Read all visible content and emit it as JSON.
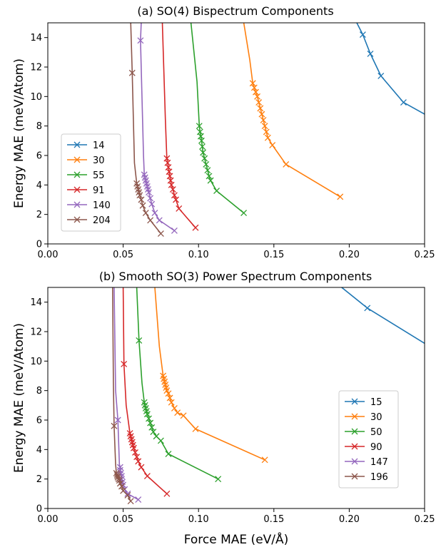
{
  "chart_data": [
    {
      "type": "line",
      "title": "(a) SO(4) Bispectrum Components",
      "xlabel": "",
      "ylabel": "Energy MAE (meV/Atom)",
      "xlim": [
        0.0,
        0.25
      ],
      "ylim": [
        0,
        15
      ],
      "xticks": [
        "0.00",
        "0.05",
        "0.10",
        "0.15",
        "0.20",
        "0.25"
      ],
      "yticks": [
        "0",
        "2",
        "4",
        "6",
        "8",
        "10",
        "12",
        "14"
      ],
      "grid": false,
      "legend_position": "center-left",
      "series": [
        {
          "name": "14",
          "color": "#1f77b4",
          "x": [
            0.205,
            0.209,
            0.214,
            0.221,
            0.236,
            0.25
          ],
          "y": [
            15.0,
            14.2,
            12.9,
            11.4,
            9.6,
            8.8
          ],
          "markers": [
            false,
            true,
            true,
            true,
            true,
            false
          ]
        },
        {
          "name": "30",
          "color": "#ff7f0e",
          "x": [
            0.13,
            0.134,
            0.136,
            0.137,
            0.138,
            0.139,
            0.14,
            0.141,
            0.142,
            0.143,
            0.144,
            0.145,
            0.146,
            0.149,
            0.158,
            0.194
          ],
          "y": [
            15.0,
            12.5,
            10.9,
            10.6,
            10.3,
            10.0,
            9.6,
            9.2,
            8.8,
            8.4,
            8.0,
            7.6,
            7.2,
            6.7,
            5.4,
            3.2
          ],
          "markers": [
            false,
            false,
            true,
            true,
            true,
            true,
            true,
            true,
            true,
            true,
            true,
            true,
            true,
            true,
            true,
            true
          ]
        },
        {
          "name": "55",
          "color": "#2ca02c",
          "x": [
            0.095,
            0.099,
            0.1005,
            0.101,
            0.1015,
            0.102,
            0.1025,
            0.103,
            0.104,
            0.105,
            0.106,
            0.107,
            0.108,
            0.112,
            0.13
          ],
          "y": [
            15.0,
            11.0,
            8.0,
            7.6,
            7.3,
            7.0,
            6.6,
            6.2,
            5.8,
            5.4,
            5.0,
            4.6,
            4.3,
            3.6,
            2.1
          ],
          "markers": [
            false,
            false,
            true,
            true,
            true,
            true,
            true,
            true,
            true,
            true,
            true,
            true,
            true,
            true,
            true
          ]
        },
        {
          "name": "91",
          "color": "#d62728",
          "x": [
            0.076,
            0.078,
            0.079,
            0.0795,
            0.08,
            0.0805,
            0.081,
            0.0815,
            0.082,
            0.083,
            0.084,
            0.085,
            0.087,
            0.098
          ],
          "y": [
            15.0,
            8.5,
            5.8,
            5.5,
            5.2,
            4.9,
            4.6,
            4.3,
            4.0,
            3.7,
            3.3,
            3.0,
            2.4,
            1.1
          ],
          "markers": [
            false,
            false,
            true,
            true,
            true,
            true,
            true,
            true,
            true,
            true,
            true,
            true,
            true,
            true
          ]
        },
        {
          "name": "140",
          "color": "#9467bd",
          "x": [
            0.062,
            0.0615,
            0.0635,
            0.064,
            0.0645,
            0.065,
            0.0655,
            0.066,
            0.0665,
            0.067,
            0.068,
            0.069,
            0.071,
            0.074,
            0.084
          ],
          "y": [
            15.0,
            13.8,
            6.0,
            4.7,
            4.5,
            4.3,
            4.1,
            3.9,
            3.7,
            3.5,
            3.1,
            2.7,
            2.1,
            1.6,
            0.9
          ],
          "markers": [
            false,
            true,
            false,
            true,
            true,
            true,
            true,
            true,
            true,
            true,
            true,
            true,
            true,
            true,
            true
          ]
        },
        {
          "name": "204",
          "color": "#8c564b",
          "x": [
            0.055,
            0.056,
            0.0575,
            0.059,
            0.0595,
            0.06,
            0.0605,
            0.061,
            0.062,
            0.063,
            0.065,
            0.068,
            0.075
          ],
          "y": [
            15.0,
            11.6,
            5.5,
            4.1,
            3.9,
            3.7,
            3.5,
            3.3,
            3.0,
            2.6,
            2.1,
            1.6,
            0.7
          ],
          "markers": [
            false,
            true,
            false,
            true,
            true,
            true,
            true,
            true,
            true,
            true,
            true,
            true,
            true
          ]
        }
      ]
    },
    {
      "type": "line",
      "title": "(b) Smooth SO(3) Power Spectrum Components",
      "xlabel": "Force MAE (eV/Å)",
      "ylabel": "Energy MAE (meV/Atom)",
      "xlim": [
        0.0,
        0.25
      ],
      "ylim": [
        0,
        15
      ],
      "xticks": [
        "0.00",
        "0.05",
        "0.10",
        "0.15",
        "0.20",
        "0.25"
      ],
      "yticks": [
        "0",
        "2",
        "4",
        "6",
        "8",
        "10",
        "12",
        "14"
      ],
      "grid": false,
      "legend_position": "lower-right",
      "series": [
        {
          "name": "15",
          "color": "#1f77b4",
          "x": [
            0.195,
            0.212,
            0.25
          ],
          "y": [
            15.0,
            13.6,
            11.2
          ],
          "markers": [
            false,
            true,
            false
          ]
        },
        {
          "name": "30",
          "color": "#ff7f0e",
          "x": [
            0.071,
            0.074,
            0.0765,
            0.077,
            0.0775,
            0.078,
            0.0785,
            0.079,
            0.08,
            0.081,
            0.082,
            0.084,
            0.086,
            0.09,
            0.098,
            0.144
          ],
          "y": [
            15.0,
            11.0,
            9.0,
            8.8,
            8.6,
            8.4,
            8.2,
            8.0,
            7.8,
            7.5,
            7.2,
            6.8,
            6.5,
            6.3,
            5.4,
            3.3
          ],
          "markers": [
            false,
            false,
            true,
            true,
            true,
            true,
            true,
            true,
            true,
            true,
            true,
            true,
            true,
            true,
            true,
            true
          ]
        },
        {
          "name": "50",
          "color": "#2ca02c",
          "x": [
            0.059,
            0.0605,
            0.0625,
            0.064,
            0.0645,
            0.065,
            0.0655,
            0.066,
            0.067,
            0.068,
            0.069,
            0.07,
            0.072,
            0.075,
            0.08,
            0.113
          ],
          "y": [
            15.0,
            11.4,
            8.5,
            7.2,
            7.0,
            6.8,
            6.6,
            6.4,
            6.1,
            5.8,
            5.5,
            5.2,
            4.9,
            4.6,
            3.7,
            2.0
          ],
          "markers": [
            false,
            true,
            false,
            true,
            true,
            true,
            true,
            true,
            true,
            true,
            true,
            true,
            true,
            true,
            true,
            true
          ]
        },
        {
          "name": "90",
          "color": "#d62728",
          "x": [
            0.05,
            0.0505,
            0.052,
            0.0545,
            0.055,
            0.0555,
            0.056,
            0.0565,
            0.057,
            0.058,
            0.059,
            0.06,
            0.062,
            0.066,
            0.079
          ],
          "y": [
            15.0,
            9.8,
            7.0,
            5.1,
            4.9,
            4.7,
            4.5,
            4.3,
            4.1,
            3.8,
            3.5,
            3.2,
            2.8,
            2.2,
            1.0
          ],
          "markers": [
            false,
            true,
            false,
            true,
            true,
            true,
            true,
            true,
            true,
            true,
            true,
            true,
            true,
            true,
            true
          ]
        },
        {
          "name": "147",
          "color": "#9467bd",
          "x": [
            0.044,
            0.045,
            0.0465,
            0.0475,
            0.048,
            0.048,
            0.0485,
            0.049,
            0.049,
            0.0495,
            0.05,
            0.051,
            0.053,
            0.06
          ],
          "y": [
            15.0,
            8.0,
            6.0,
            3.0,
            2.8,
            2.6,
            2.4,
            2.2,
            2.0,
            1.8,
            1.6,
            1.3,
            1.0,
            0.6
          ],
          "markers": [
            false,
            false,
            true,
            false,
            true,
            true,
            true,
            true,
            true,
            true,
            true,
            true,
            true,
            true
          ]
        },
        {
          "name": "196",
          "color": "#8c564b",
          "x": [
            0.043,
            0.0435,
            0.044,
            0.045,
            0.0455,
            0.046,
            0.0462,
            0.0465,
            0.047,
            0.0475,
            0.048,
            0.049,
            0.05,
            0.053,
            0.055
          ],
          "y": [
            15.0,
            8.5,
            5.6,
            3.0,
            2.4,
            2.3,
            2.2,
            2.1,
            2.0,
            1.9,
            1.7,
            1.5,
            1.2,
            0.9,
            0.5
          ],
          "markers": [
            false,
            false,
            true,
            false,
            true,
            true,
            true,
            true,
            true,
            true,
            true,
            true,
            true,
            true,
            true
          ]
        }
      ]
    }
  ]
}
